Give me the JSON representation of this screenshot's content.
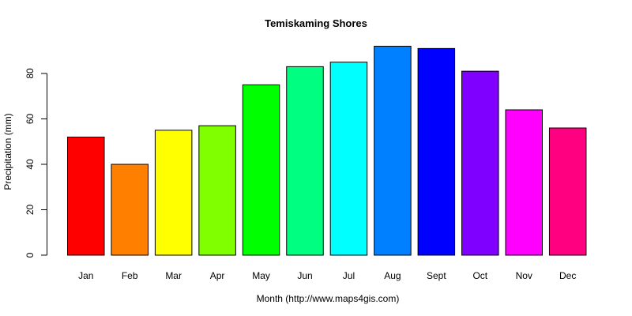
{
  "chart_data": {
    "type": "bar",
    "title": "Temiskaming Shores",
    "xlabel": "Month (http://www.maps4gis.com)",
    "ylabel": "Precipitation (mm)",
    "categories": [
      "Jan",
      "Feb",
      "Mar",
      "Apr",
      "May",
      "Jun",
      "Jul",
      "Aug",
      "Sept",
      "Oct",
      "Nov",
      "Dec"
    ],
    "values": [
      52,
      40,
      55,
      57,
      75,
      83,
      85,
      92,
      91,
      81,
      64,
      56
    ],
    "colors": [
      "#FF0000",
      "#FF8000",
      "#FFFF00",
      "#80FF00",
      "#00FF00",
      "#00FF80",
      "#00FFFF",
      "#0080FF",
      "#0000FF",
      "#8000FF",
      "#FF00FF",
      "#FF0080"
    ],
    "yticks": [
      0,
      20,
      40,
      60,
      80
    ],
    "ylim": [
      0,
      92
    ],
    "grid": false,
    "legend": null
  }
}
